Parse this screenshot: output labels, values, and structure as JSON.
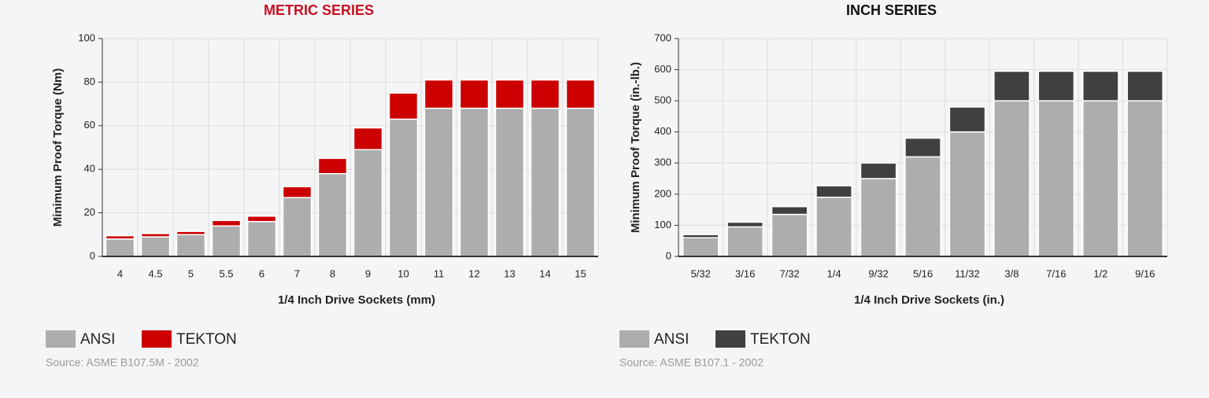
{
  "chart_data": [
    {
      "type": "bar",
      "stacked": true,
      "title": "METRIC SERIES",
      "x_label": "1/4 Inch Drive Sockets (mm)",
      "y_label": "Minimum Proof Torque (Nm)",
      "categories": [
        "4",
        "4.5",
        "5",
        "5.5",
        "6",
        "7",
        "8",
        "9",
        "10",
        "11",
        "12",
        "13",
        "14",
        "15"
      ],
      "series": [
        {
          "name": "ANSI",
          "color": "#adadad",
          "values": [
            8,
            9,
            10,
            14,
            16,
            27,
            38,
            49,
            63,
            68,
            68,
            68,
            68,
            68
          ]
        },
        {
          "name": "TEKTON",
          "color": "#cc0000",
          "values": [
            1.5,
            1.5,
            1.5,
            2.5,
            2.5,
            5,
            7,
            10,
            12,
            13,
            13,
            13,
            13,
            13
          ]
        }
      ],
      "ylim": [
        0,
        100
      ],
      "yticks": [
        0,
        20,
        40,
        60,
        80,
        100
      ],
      "grid": true,
      "source": "Source: ASME B107.5M - 2002"
    },
    {
      "type": "bar",
      "stacked": true,
      "title": "INCH SERIES",
      "x_label": "1/4 Inch Drive Sockets (in.)",
      "y_label": "Minimum Proof Torque (in.-lb.)",
      "categories": [
        "5/32",
        "3/16",
        "7/32",
        "1/4",
        "9/32",
        "5/16",
        "11/32",
        "3/8",
        "7/16",
        "1/2",
        "9/16"
      ],
      "series": [
        {
          "name": "ANSI",
          "color": "#adadad",
          "values": [
            60,
            95,
            135,
            190,
            250,
            320,
            400,
            500,
            500,
            500,
            500
          ]
        },
        {
          "name": "TEKTON",
          "color": "#404040",
          "values": [
            10,
            15,
            25,
            37,
            50,
            60,
            80,
            95,
            95,
            95,
            95
          ]
        }
      ],
      "ylim": [
        0,
        700
      ],
      "yticks": [
        0,
        100,
        200,
        300,
        400,
        500,
        600,
        700
      ],
      "grid": true,
      "source": "Source: ASME B107.1 - 2002"
    }
  ]
}
